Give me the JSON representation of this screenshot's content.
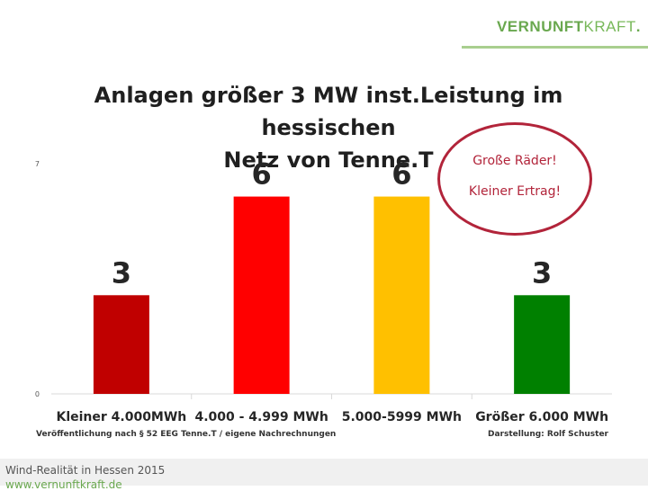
{
  "brand": {
    "part1": "VERNUNFT",
    "part2": "KRAFT",
    "part3": "."
  },
  "chart_data": {
    "type": "bar",
    "title_lines": [
      "Anlagen größer 3 MW inst.Leistung im hessischen",
      "Netz von Tenne.T"
    ],
    "categories": [
      "Kleiner 4.000MWh",
      "4.000 - 4.999 MWh",
      "5.000-5999 MWh",
      "Größer 6.000 MWh"
    ],
    "values": [
      3,
      6,
      6,
      3
    ],
    "colors": [
      "#c00000",
      "#ff0000",
      "#ffc000",
      "#008000"
    ],
    "data_labels": [
      "3",
      "6",
      "6",
      "3"
    ],
    "ylim": [
      0,
      7
    ],
    "ytick_labels": [
      "0",
      "7"
    ],
    "grid": false,
    "legend": false
  },
  "callout": {
    "line1": "Große Räder!",
    "line2": "Kleiner Ertrag!"
  },
  "footnotes": {
    "source": "Veröffentlichung nach § 52 EEG  Tenne.T /  eigene Nachrechnungen",
    "credit": "Darstellung: Rolf Schuster"
  },
  "footer": {
    "text": "Wind-Realität in Hessen 2015",
    "url": "www.vernunftkraft.de"
  }
}
